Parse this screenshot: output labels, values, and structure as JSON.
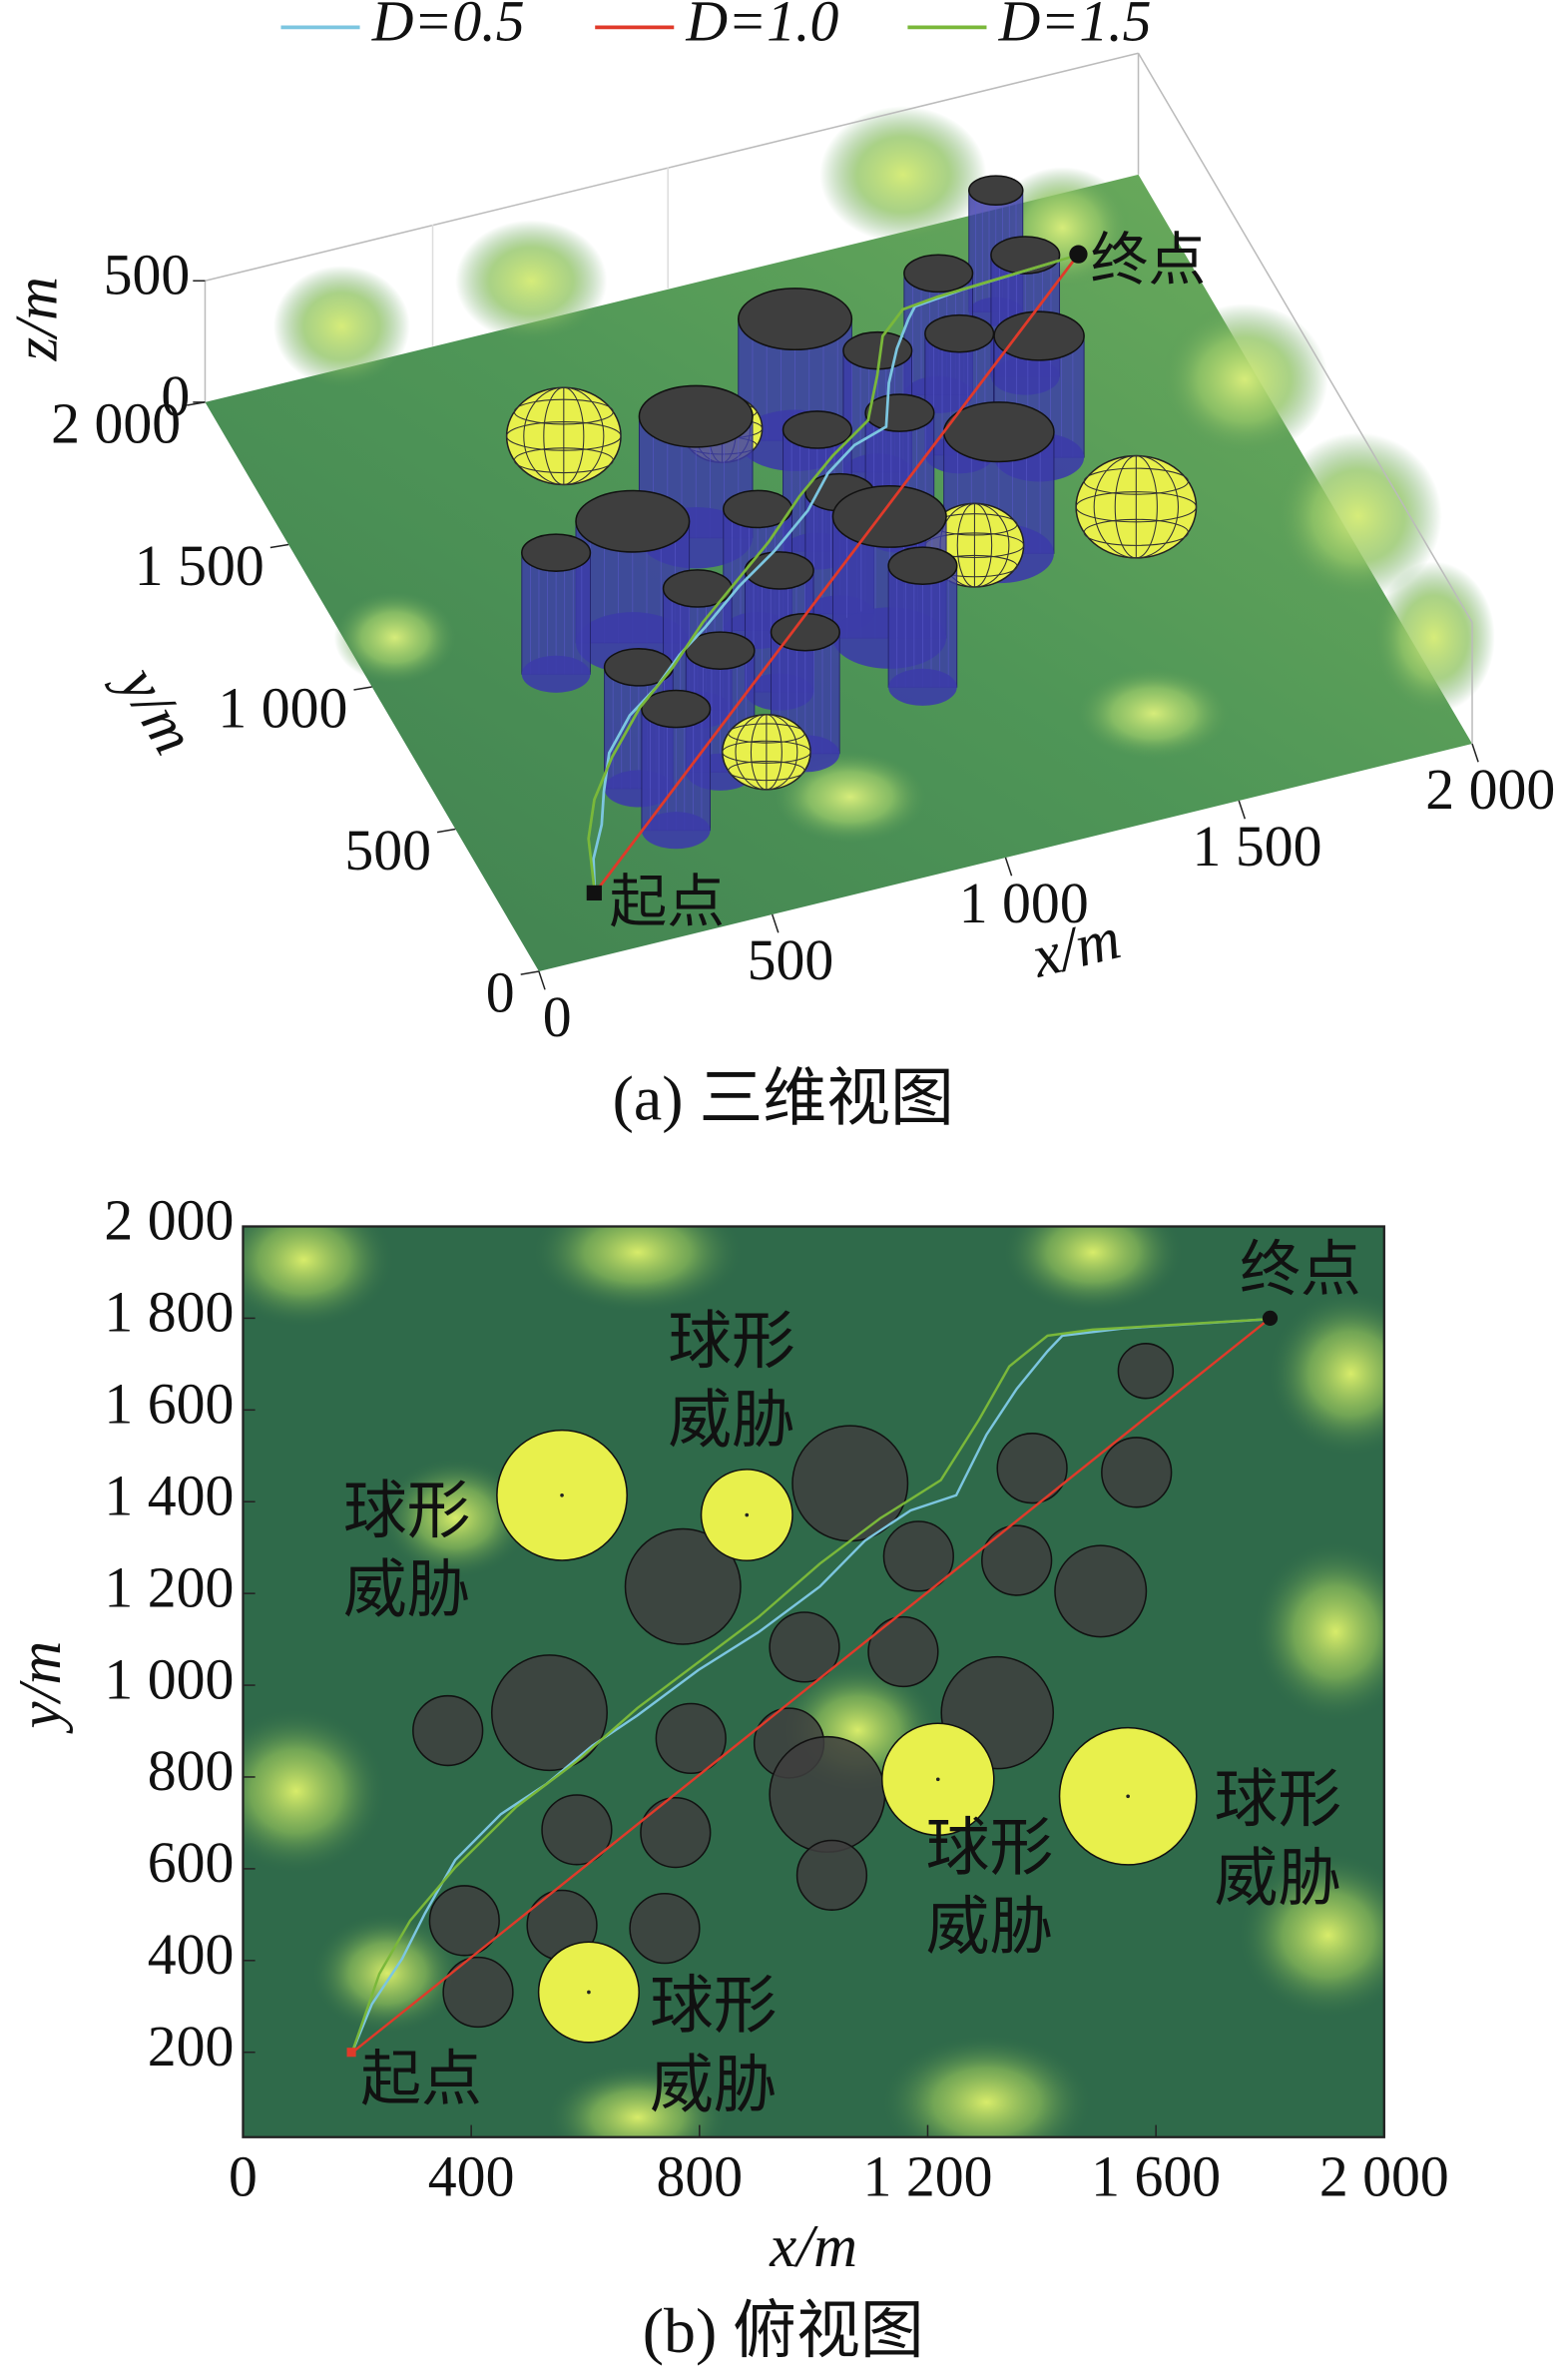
{
  "chart_data": [
    {
      "type": "scene3d",
      "caption": "(a) 三维视图",
      "xlabel": "x/m",
      "ylabel": "y/m",
      "zlabel": "z/m",
      "xlim": [
        0,
        2000
      ],
      "ylim": [
        0,
        2000
      ],
      "zlim": [
        0,
        500
      ],
      "xticks": [
        0,
        500,
        {
          "value": 1000,
          "label": "1 000"
        },
        {
          "value": 1500,
          "label": "1 500"
        },
        {
          "value": 2000,
          "label": "2 000"
        }
      ],
      "yticks": [
        0,
        500,
        {
          "value": 1000,
          "label": "1 000"
        },
        {
          "value": 1500,
          "label": "1 500"
        },
        {
          "value": 2000,
          "label": "2 000"
        }
      ],
      "zticks": [
        0,
        500
      ],
      "cylinder_height": 500
    },
    {
      "type": "topview",
      "caption": "(b) 俯视图",
      "xlabel": "x/m",
      "ylabel": "y/m",
      "xlim": [
        0,
        2000
      ],
      "ylim": [
        15,
        2000
      ],
      "xticks": [
        0,
        400,
        800,
        {
          "value": 1200,
          "label": "1 200"
        },
        {
          "value": 1600,
          "label": "1 600"
        },
        {
          "value": 2000,
          "label": "2 000"
        }
      ],
      "yticks": [
        200,
        400,
        600,
        800,
        {
          "value": 1000,
          "label": "1 000"
        },
        {
          "value": 1200,
          "label": "1 200"
        },
        {
          "value": 1400,
          "label": "1 400"
        },
        {
          "value": 1600,
          "label": "1 600"
        },
        {
          "value": 1800,
          "label": "1 800"
        },
        {
          "value": 2000,
          "label": "2 000"
        }
      ],
      "series": [
        {
          "name": "D=0.5",
          "color": "#7cc6e0",
          "x": [
            191,
            226,
            279,
            319,
            372,
            452,
            532,
            612,
            691,
            798,
            904,
            1011,
            1090,
            1170,
            1250,
            1303,
            1356,
            1410,
            1436,
            1543,
            1798
          ],
          "y": [
            199,
            305,
            404,
            503,
            619,
            719,
            785,
            868,
            934,
            1033,
            1116,
            1215,
            1315,
            1381,
            1414,
            1546,
            1646,
            1728,
            1762,
            1778,
            1798
          ]
        },
        {
          "name": "D=1.0",
          "color": "#e03a2a",
          "x": [
            191,
            1798
          ],
          "y": [
            199,
            1798
          ]
        },
        {
          "name": "D=1.5",
          "color": "#7ab83a",
          "x": [
            191,
            239,
            293,
            372,
            479,
            585,
            691,
            798,
            904,
            1011,
            1117,
            1223,
            1290,
            1343,
            1410,
            1489,
            1798
          ],
          "y": [
            199,
            371,
            487,
            603,
            735,
            834,
            950,
            1050,
            1149,
            1265,
            1364,
            1447,
            1579,
            1695,
            1762,
            1775,
            1798
          ]
        }
      ],
      "obstacles": [
        {
          "x": 359,
          "y": 901,
          "r": 61
        },
        {
          "x": 537,
          "y": 940,
          "r": 101
        },
        {
          "x": 771,
          "y": 1215,
          "r": 101
        },
        {
          "x": 1064,
          "y": 1440,
          "r": 101
        },
        {
          "x": 1582,
          "y": 1685,
          "r": 48
        },
        {
          "x": 1383,
          "y": 1473,
          "r": 61
        },
        {
          "x": 1566,
          "y": 1464,
          "r": 61
        },
        {
          "x": 1184,
          "y": 1281,
          "r": 61
        },
        {
          "x": 1356,
          "y": 1272,
          "r": 61
        },
        {
          "x": 1503,
          "y": 1205,
          "r": 80
        },
        {
          "x": 984,
          "y": 1083,
          "r": 61
        },
        {
          "x": 1157,
          "y": 1073,
          "r": 61
        },
        {
          "x": 1322,
          "y": 940,
          "r": 98
        },
        {
          "x": 785,
          "y": 884,
          "r": 61
        },
        {
          "x": 957,
          "y": 874,
          "r": 61
        },
        {
          "x": 1024,
          "y": 762,
          "r": 101
        },
        {
          "x": 585,
          "y": 685,
          "r": 61
        },
        {
          "x": 758,
          "y": 679,
          "r": 61
        },
        {
          "x": 1032,
          "y": 586,
          "r": 61
        },
        {
          "x": 388,
          "y": 487,
          "r": 61
        },
        {
          "x": 559,
          "y": 477,
          "r": 61
        },
        {
          "x": 739,
          "y": 470,
          "r": 61
        },
        {
          "x": 412,
          "y": 331,
          "r": 61
        }
      ],
      "obstacle_color": "#3e3e3e",
      "spheres": [
        {
          "x": 559,
          "y": 1414,
          "r": 114
        },
        {
          "x": 883,
          "y": 1371,
          "r": 80
        },
        {
          "x": 1218,
          "y": 795,
          "r": 98
        },
        {
          "x": 1551,
          "y": 758,
          "r": 120
        },
        {
          "x": 606,
          "y": 331,
          "r": 88
        }
      ],
      "sphere_color": "#e8f04c",
      "annotations": [
        [
          "球形",
          "威胁"
        ],
        [
          "球形",
          "威胁"
        ],
        [
          "球形",
          "威胁"
        ],
        [
          "球形",
          "威胁"
        ],
        [
          "球形",
          "威胁"
        ]
      ],
      "start": {
        "label": "起点",
        "x": 190,
        "y": 200
      },
      "end": {
        "label": "终点",
        "x": 1800,
        "y": 1800
      }
    }
  ]
}
